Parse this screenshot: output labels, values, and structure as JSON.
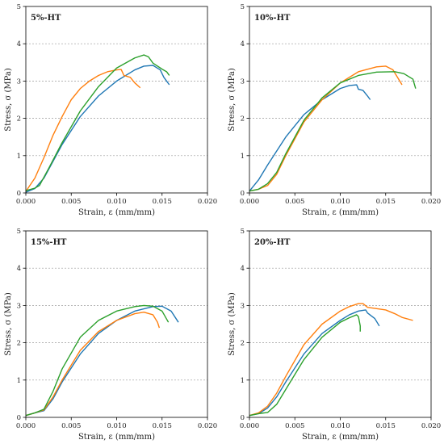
{
  "colors": {
    "blue": "#1f77b4",
    "orange": "#ff7f0e",
    "green": "#2ca02c",
    "grid": "#9a9a9a"
  },
  "chart_data": [
    {
      "type": "line",
      "title": "5%-HT",
      "xlabel": "Strain, ε (mm/mm)",
      "ylabel": "Stress, σ (MPa)",
      "xlim": [
        0,
        0.02
      ],
      "ylim": [
        0,
        5
      ],
      "xticks": [
        "0.000",
        "0.005",
        "0.010",
        "0.015",
        "0.020"
      ],
      "yticks": [
        "0",
        "1",
        "2",
        "3",
        "4",
        "5"
      ],
      "grid": "horizontal dashed",
      "legend": "none",
      "series": [
        {
          "color": "#1f77b4",
          "points": [
            [
              0,
              0.02
            ],
            [
              0.001,
              0.12
            ],
            [
              0.002,
              0.4
            ],
            [
              0.004,
              1.3
            ],
            [
              0.006,
              2.05
            ],
            [
              0.008,
              2.6
            ],
            [
              0.01,
              3.0
            ],
            [
              0.012,
              3.3
            ],
            [
              0.013,
              3.4
            ],
            [
              0.014,
              3.42
            ],
            [
              0.0148,
              3.3
            ],
            [
              0.0152,
              3.1
            ],
            [
              0.0158,
              2.9
            ]
          ]
        },
        {
          "color": "#ff7f0e",
          "points": [
            [
              0,
              0.04
            ],
            [
              0.001,
              0.4
            ],
            [
              0.002,
              0.95
            ],
            [
              0.003,
              1.55
            ],
            [
              0.004,
              2.05
            ],
            [
              0.005,
              2.5
            ],
            [
              0.006,
              2.8
            ],
            [
              0.007,
              3.0
            ],
            [
              0.008,
              3.15
            ],
            [
              0.009,
              3.25
            ],
            [
              0.01,
              3.3
            ],
            [
              0.0105,
              3.31
            ],
            [
              0.0108,
              3.15
            ],
            [
              0.0115,
              3.1
            ],
            [
              0.012,
              2.95
            ],
            [
              0.0126,
              2.82
            ]
          ]
        },
        {
          "color": "#2ca02c",
          "points": [
            [
              0,
              0.06
            ],
            [
              0.001,
              0.13
            ],
            [
              0.0015,
              0.2
            ],
            [
              0.0025,
              0.65
            ],
            [
              0.004,
              1.35
            ],
            [
              0.006,
              2.2
            ],
            [
              0.008,
              2.85
            ],
            [
              0.01,
              3.35
            ],
            [
              0.012,
              3.62
            ],
            [
              0.013,
              3.7
            ],
            [
              0.0135,
              3.65
            ],
            [
              0.014,
              3.48
            ],
            [
              0.015,
              3.32
            ],
            [
              0.0155,
              3.25
            ],
            [
              0.0158,
              3.15
            ]
          ]
        }
      ]
    },
    {
      "type": "line",
      "title": "10%-HT",
      "xlabel": "Strain, ε (mm/mm)",
      "ylabel": "Stress, σ (MPa)",
      "xlim": [
        0,
        0.02
      ],
      "ylim": [
        0,
        5
      ],
      "xticks": [
        "0.000",
        "0.005",
        "0.010",
        "0.015",
        "0.020"
      ],
      "yticks": [
        "0",
        "1",
        "2",
        "3",
        "4",
        "5"
      ],
      "grid": "horizontal dashed",
      "legend": "none",
      "series": [
        {
          "color": "#1f77b4",
          "points": [
            [
              0,
              0.05
            ],
            [
              0.001,
              0.35
            ],
            [
              0.002,
              0.75
            ],
            [
              0.004,
              1.5
            ],
            [
              0.006,
              2.1
            ],
            [
              0.008,
              2.5
            ],
            [
              0.01,
              2.8
            ],
            [
              0.011,
              2.88
            ],
            [
              0.0118,
              2.9
            ],
            [
              0.012,
              2.78
            ],
            [
              0.0125,
              2.75
            ],
            [
              0.013,
              2.6
            ],
            [
              0.0133,
              2.5
            ]
          ]
        },
        {
          "color": "#ff7f0e",
          "points": [
            [
              0,
              0.05
            ],
            [
              0.001,
              0.1
            ],
            [
              0.002,
              0.2
            ],
            [
              0.003,
              0.5
            ],
            [
              0.004,
              1.0
            ],
            [
              0.006,
              1.9
            ],
            [
              0.008,
              2.5
            ],
            [
              0.01,
              2.95
            ],
            [
              0.012,
              3.25
            ],
            [
              0.014,
              3.38
            ],
            [
              0.015,
              3.4
            ],
            [
              0.0158,
              3.3
            ],
            [
              0.0163,
              3.1
            ],
            [
              0.0168,
              2.9
            ]
          ]
        },
        {
          "color": "#2ca02c",
          "points": [
            [
              0,
              0.05
            ],
            [
              0.001,
              0.1
            ],
            [
              0.002,
              0.25
            ],
            [
              0.003,
              0.55
            ],
            [
              0.004,
              1.05
            ],
            [
              0.006,
              1.95
            ],
            [
              0.008,
              2.55
            ],
            [
              0.01,
              2.95
            ],
            [
              0.012,
              3.15
            ],
            [
              0.014,
              3.24
            ],
            [
              0.016,
              3.25
            ],
            [
              0.017,
              3.2
            ],
            [
              0.018,
              3.05
            ],
            [
              0.0183,
              2.8
            ]
          ]
        }
      ]
    },
    {
      "type": "line",
      "title": "15%-HT",
      "xlabel": "Strain, ε (mm/mm)",
      "ylabel": "Stress, σ (MPa)",
      "xlim": [
        0,
        0.02
      ],
      "ylim": [
        0,
        5
      ],
      "xticks": [
        "0.000",
        "0.005",
        "0.010",
        "0.015",
        "0.020"
      ],
      "yticks": [
        "0",
        "1",
        "2",
        "3",
        "4",
        "5"
      ],
      "grid": "horizontal dashed",
      "legend": "none",
      "series": [
        {
          "color": "#1f77b4",
          "points": [
            [
              0,
              0.05
            ],
            [
              0.001,
              0.12
            ],
            [
              0.002,
              0.18
            ],
            [
              0.003,
              0.5
            ],
            [
              0.004,
              0.95
            ],
            [
              0.006,
              1.7
            ],
            [
              0.008,
              2.25
            ],
            [
              0.01,
              2.6
            ],
            [
              0.012,
              2.85
            ],
            [
              0.014,
              2.97
            ],
            [
              0.015,
              2.98
            ],
            [
              0.016,
              2.85
            ],
            [
              0.0168,
              2.55
            ]
          ]
        },
        {
          "color": "#ff7f0e",
          "points": [
            [
              0,
              0.05
            ],
            [
              0.001,
              0.12
            ],
            [
              0.002,
              0.2
            ],
            [
              0.003,
              0.55
            ],
            [
              0.004,
              1.0
            ],
            [
              0.006,
              1.8
            ],
            [
              0.008,
              2.3
            ],
            [
              0.01,
              2.6
            ],
            [
              0.012,
              2.78
            ],
            [
              0.013,
              2.82
            ],
            [
              0.014,
              2.75
            ],
            [
              0.0145,
              2.55
            ],
            [
              0.0147,
              2.4
            ]
          ]
        },
        {
          "color": "#2ca02c",
          "points": [
            [
              0,
              0.05
            ],
            [
              0.001,
              0.12
            ],
            [
              0.002,
              0.22
            ],
            [
              0.003,
              0.7
            ],
            [
              0.004,
              1.3
            ],
            [
              0.006,
              2.15
            ],
            [
              0.008,
              2.6
            ],
            [
              0.01,
              2.85
            ],
            [
              0.012,
              2.97
            ],
            [
              0.013,
              3.0
            ],
            [
              0.014,
              2.98
            ],
            [
              0.015,
              2.85
            ],
            [
              0.0157,
              2.55
            ]
          ]
        }
      ]
    },
    {
      "type": "line",
      "title": "20%-HT",
      "xlabel": "Strain, ε (mm/mm)",
      "ylabel": "Stress, σ (MPa)",
      "xlim": [
        0,
        0.02
      ],
      "ylim": [
        0,
        5
      ],
      "xticks": [
        "0.000",
        "0.005",
        "0.010",
        "0.015",
        "0.020"
      ],
      "yticks": [
        "0",
        "1",
        "2",
        "3",
        "4",
        "5"
      ],
      "grid": "horizontal dashed",
      "legend": "none",
      "series": [
        {
          "color": "#1f77b4",
          "points": [
            [
              0,
              0.05
            ],
            [
              0.001,
              0.1
            ],
            [
              0.002,
              0.25
            ],
            [
              0.003,
              0.55
            ],
            [
              0.004,
              0.95
            ],
            [
              0.006,
              1.7
            ],
            [
              0.008,
              2.25
            ],
            [
              0.01,
              2.6
            ],
            [
              0.011,
              2.75
            ],
            [
              0.012,
              2.85
            ],
            [
              0.0128,
              2.88
            ],
            [
              0.013,
              2.8
            ],
            [
              0.0138,
              2.65
            ],
            [
              0.0143,
              2.45
            ]
          ]
        },
        {
          "color": "#ff7f0e",
          "points": [
            [
              0,
              0.05
            ],
            [
              0.001,
              0.12
            ],
            [
              0.002,
              0.3
            ],
            [
              0.003,
              0.65
            ],
            [
              0.004,
              1.1
            ],
            [
              0.006,
              1.95
            ],
            [
              0.008,
              2.5
            ],
            [
              0.01,
              2.85
            ],
            [
              0.011,
              2.97
            ],
            [
              0.012,
              3.05
            ],
            [
              0.0125,
              3.05
            ],
            [
              0.013,
              2.95
            ],
            [
              0.015,
              2.88
            ],
            [
              0.016,
              2.78
            ],
            [
              0.0168,
              2.68
            ],
            [
              0.018,
              2.6
            ]
          ]
        },
        {
          "color": "#2ca02c",
          "points": [
            [
              0,
              0.05
            ],
            [
              0.001,
              0.1
            ],
            [
              0.002,
              0.13
            ],
            [
              0.003,
              0.35
            ],
            [
              0.004,
              0.75
            ],
            [
              0.006,
              1.55
            ],
            [
              0.008,
              2.15
            ],
            [
              0.01,
              2.55
            ],
            [
              0.011,
              2.67
            ],
            [
              0.0118,
              2.75
            ],
            [
              0.012,
              2.7
            ],
            [
              0.0122,
              2.45
            ],
            [
              0.0122,
              2.3
            ]
          ]
        }
      ]
    }
  ]
}
